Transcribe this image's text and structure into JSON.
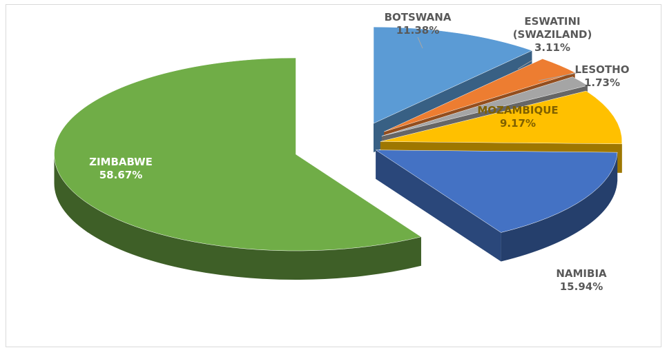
{
  "chart_data": {
    "type": "pie",
    "title": "",
    "style": "3d-exploded",
    "legend": "none",
    "slices": [
      {
        "name": "BOTSWANA",
        "value": 11.38,
        "label": "11.38%",
        "color": "#5b9bd5"
      },
      {
        "name": "ESWATINI (SWAZILAND)",
        "value": 3.11,
        "label": "3.11%",
        "color": "#ed7d31"
      },
      {
        "name": "LESOTHO",
        "value": 1.73,
        "label": "1.73%",
        "color": "#a5a5a5"
      },
      {
        "name": "MOZAMBIQUE",
        "value": 9.17,
        "label": "9.17%",
        "color": "#ffc000"
      },
      {
        "name": "NAMIBIA",
        "value": 15.94,
        "label": "15.94%",
        "color": "#4472c4"
      },
      {
        "name": "ZIMBABWE",
        "value": 58.67,
        "label": "58.67%",
        "color": "#70ad47"
      }
    ],
    "data_label_lines": {
      "BOTSWANA": [
        "BOTSWANA",
        "11.38%"
      ],
      "ESWATINI (SWAZILAND)": [
        "ESWATINI",
        "(SWAZILAND)",
        "3.11%"
      ],
      "LESOTHO": [
        "LESOTHO",
        "1.73%"
      ],
      "MOZAMBIQUE": [
        "MOZAMBIQUE",
        "9.17%"
      ],
      "NAMIBIA": [
        "NAMIBIA",
        "15.94%"
      ],
      "ZIMBABWE": [
        "ZIMBABWE",
        "58.67%"
      ]
    }
  }
}
